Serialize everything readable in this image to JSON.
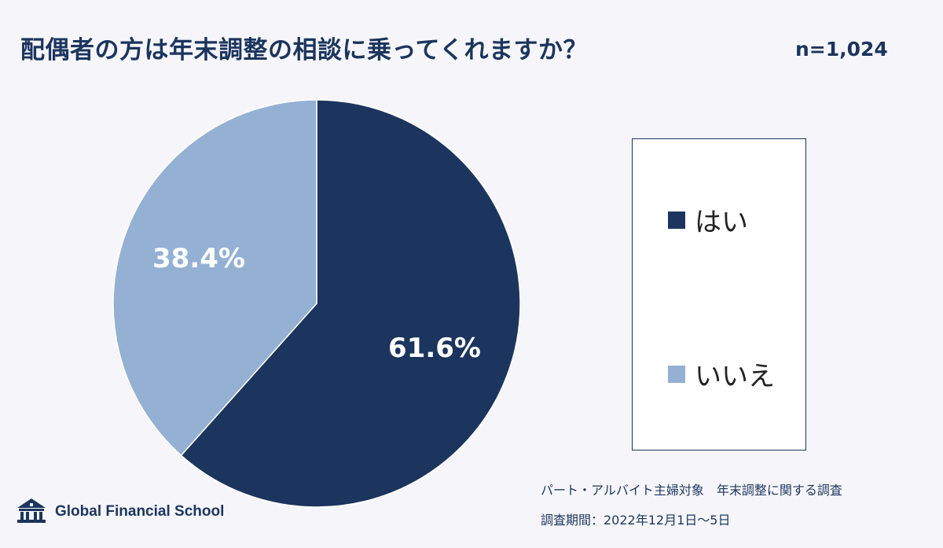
{
  "header": {
    "title": "配偶者の方は年末調整の相談に乗ってくれますか？",
    "sample_size": "n=1,024"
  },
  "chart_data": {
    "type": "pie",
    "categories": [
      "はい",
      "いいえ"
    ],
    "values": [
      61.6,
      38.4
    ],
    "data_labels": [
      "61.6%",
      "38.4%"
    ],
    "colors": [
      "#1c355e",
      "#94b0d3"
    ],
    "start_angle": "12 o'clock, clockwise",
    "legend_position": "right"
  },
  "footer": {
    "logo_text": "Global Financial School",
    "source_line1": "パート・アルバイト主婦対象　年末調整に関する調査",
    "source_line2": "調査期間：2022年12月1日〜5日"
  }
}
